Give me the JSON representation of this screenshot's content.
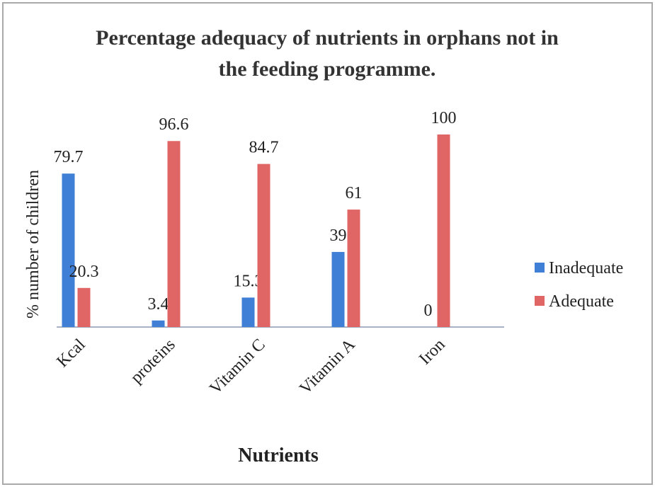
{
  "chart_data": {
    "type": "bar",
    "title": "Percentage adequacy of nutrients in orphans not in the feeding programme.",
    "x_label": "Nutrients",
    "y_label": "% number of children",
    "categories": [
      "Kcal",
      "proteins",
      "Vitamin C",
      "Vitamin A",
      "Iron"
    ],
    "series": [
      {
        "name": "Inadequate",
        "color": "#3f7fd6",
        "values": [
          79.7,
          3.4,
          15.3,
          39,
          0
        ]
      },
      {
        "name": "Adequate",
        "color": "#e06666",
        "values": [
          20.3,
          96.6,
          84.7,
          61,
          100
        ]
      }
    ],
    "ylim": [
      0,
      100
    ],
    "legend": "right"
  }
}
